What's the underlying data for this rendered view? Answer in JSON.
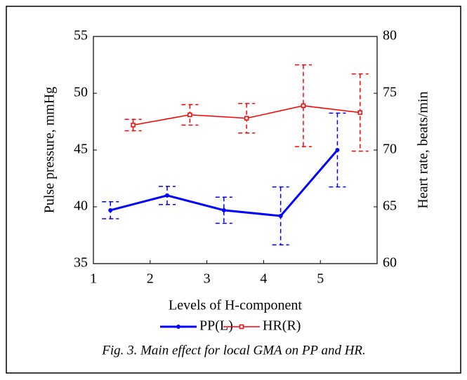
{
  "chart_data": {
    "type": "line",
    "x_label": "Levels of H-component",
    "y_label": "Pulse pressure, mmHg",
    "y2_label": "Heart rate, beats/min",
    "caption": "Fig. 3. Main effect for local GMA on PP and HR.",
    "xlim": [
      1,
      6
    ],
    "xticks": [
      1,
      2,
      3,
      4,
      5
    ],
    "ylim": [
      35,
      55
    ],
    "yticks": [
      35,
      40,
      45,
      50,
      55
    ],
    "y2lim": [
      60,
      80
    ],
    "y2ticks": [
      60,
      65,
      70,
      75,
      80
    ],
    "legend": "bottom",
    "series": [
      {
        "name": "PP(L)",
        "color": "#0000ff",
        "axis": "y",
        "marker": "circle",
        "line_width": 3,
        "x": [
          1.3,
          2.3,
          3.3,
          4.3,
          5.3
        ],
        "values": [
          39.7,
          41.0,
          39.7,
          39.2,
          45.0
        ],
        "errors": [
          0.75,
          0.8,
          1.15,
          2.55,
          3.25
        ]
      },
      {
        "name": "HR(R)",
        "color": "#ff0000",
        "axis": "y2",
        "marker": "square",
        "line_width": 1.5,
        "x": [
          1.7,
          2.7,
          3.7,
          4.7,
          5.7
        ],
        "values": [
          72.2,
          73.1,
          72.8,
          73.9,
          73.3
        ],
        "errors": [
          0.5,
          0.9,
          1.3,
          3.6,
          3.4
        ]
      }
    ]
  }
}
